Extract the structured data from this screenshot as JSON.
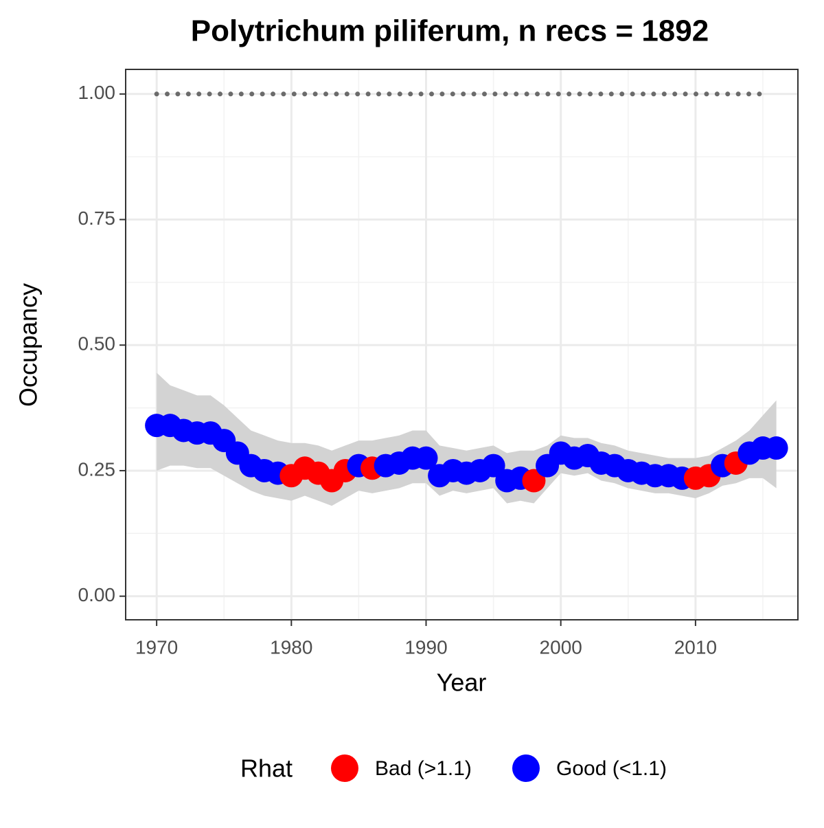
{
  "chart_data": {
    "type": "scatter",
    "title": "Polytrichum piliferum, n recs = 1892",
    "x_label": "Year",
    "y_label": "Occupancy",
    "x": [
      1970,
      1971,
      1972,
      1973,
      1974,
      1975,
      1976,
      1977,
      1978,
      1979,
      1980,
      1981,
      1982,
      1983,
      1984,
      1985,
      1986,
      1987,
      1988,
      1989,
      1990,
      1991,
      1992,
      1993,
      1994,
      1995,
      1996,
      1997,
      1998,
      1999,
      2000,
      2001,
      2002,
      2003,
      2004,
      2005,
      2006,
      2007,
      2008,
      2009,
      2010,
      2011,
      2012,
      2013,
      2014,
      2015,
      2016
    ],
    "legend_title": "Rhat",
    "series": [
      {
        "name": "Bad (>1.1)",
        "color": "#ff0000",
        "values": [
          null,
          null,
          null,
          null,
          null,
          null,
          null,
          null,
          null,
          null,
          0.24,
          0.255,
          0.245,
          0.23,
          0.25,
          null,
          0.255,
          null,
          null,
          null,
          null,
          null,
          null,
          null,
          null,
          null,
          null,
          null,
          0.23,
          null,
          null,
          null,
          null,
          null,
          null,
          null,
          null,
          null,
          null,
          null,
          0.235,
          0.24,
          null,
          0.265,
          null,
          null,
          null
        ]
      },
      {
        "name": "Good (<1.1)",
        "color": "#0000ff",
        "values": [
          0.34,
          0.34,
          0.33,
          0.325,
          0.325,
          0.31,
          0.285,
          0.26,
          0.25,
          0.245,
          null,
          null,
          null,
          null,
          null,
          0.26,
          null,
          0.26,
          0.265,
          0.275,
          0.275,
          0.24,
          0.25,
          0.245,
          0.25,
          0.26,
          0.23,
          0.235,
          null,
          0.26,
          0.285,
          0.275,
          0.28,
          0.265,
          0.26,
          0.25,
          0.245,
          0.24,
          0.24,
          0.235,
          null,
          null,
          0.26,
          null,
          0.285,
          0.295,
          0.295
        ]
      }
    ],
    "ribbon": {
      "color": "#d3d3d3",
      "upper": [
        0.445,
        0.42,
        0.41,
        0.4,
        0.4,
        0.38,
        0.355,
        0.33,
        0.32,
        0.31,
        0.305,
        0.305,
        0.3,
        0.29,
        0.3,
        0.31,
        0.31,
        0.315,
        0.32,
        0.33,
        0.33,
        0.3,
        0.295,
        0.29,
        0.295,
        0.3,
        0.285,
        0.29,
        0.29,
        0.3,
        0.32,
        0.315,
        0.315,
        0.305,
        0.3,
        0.29,
        0.285,
        0.28,
        0.275,
        0.275,
        0.275,
        0.28,
        0.295,
        0.31,
        0.33,
        0.36,
        0.39
      ],
      "lower": [
        0.25,
        0.26,
        0.26,
        0.255,
        0.255,
        0.24,
        0.225,
        0.21,
        0.2,
        0.195,
        0.19,
        0.2,
        0.19,
        0.18,
        0.195,
        0.21,
        0.205,
        0.21,
        0.215,
        0.225,
        0.225,
        0.2,
        0.21,
        0.205,
        0.21,
        0.215,
        0.185,
        0.19,
        0.185,
        0.215,
        0.245,
        0.24,
        0.245,
        0.23,
        0.225,
        0.215,
        0.21,
        0.205,
        0.205,
        0.2,
        0.195,
        0.205,
        0.22,
        0.225,
        0.235,
        0.235,
        0.215
      ]
    },
    "hline": {
      "value": 1,
      "x_from": 1970,
      "x_to": 2015,
      "color": "#6b6b6b"
    },
    "xlim": [
      1967.7,
      2017.6
    ],
    "ylim": [
      -0.047,
      1.049
    ],
    "xticks": [
      1970,
      1980,
      1990,
      2000,
      2010
    ],
    "minor_xticks": [
      1975,
      1985,
      1995,
      2005,
      2015
    ],
    "yticks": [
      {
        "value": 0,
        "label": "0.00"
      },
      {
        "value": 0.25,
        "label": "0.25"
      },
      {
        "value": 0.5,
        "label": "0.50"
      },
      {
        "value": 0.75,
        "label": "0.75"
      },
      {
        "value": 1,
        "label": "1.00"
      }
    ],
    "minor_yticks": [
      0.125,
      0.375,
      0.625,
      0.875
    ],
    "grid": true
  }
}
